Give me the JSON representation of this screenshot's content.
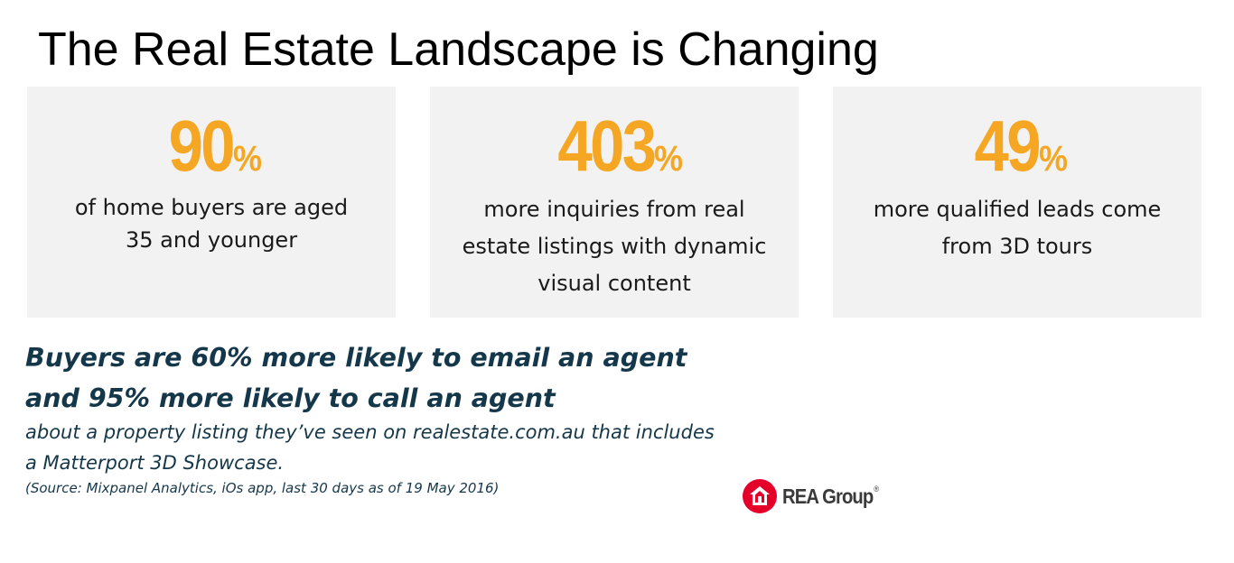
{
  "title": "The Real Estate Landscape is Changing",
  "stats": [
    {
      "value": "90",
      "unit": "%",
      "line1": "of home buyers are aged",
      "line2": "35 and younger",
      "line3": ""
    },
    {
      "value": "403",
      "unit": "%",
      "line1": "more inquiries from real",
      "line2": "estate listings with dynamic",
      "line3": "visual content"
    },
    {
      "value": "49",
      "unit": "%",
      "line1": "more qualified leads come",
      "line2": "from 3D tours",
      "line3": ""
    }
  ],
  "headline": {
    "line1": "Buyers are 60% more likely to email an agent",
    "line2": "and 95% more likely to call an agent"
  },
  "subtext": {
    "line1": "about a property listing they’ve seen on realestate.com.au that includes",
    "line2": "a Matterport 3D Showcase."
  },
  "source": "(Source: Mixpanel Analytics, iOs app, last 30 days as of 19 May 2016)",
  "logo": {
    "text": "REA Group",
    "mark": "®",
    "icon": "rea-house-icon"
  },
  "colors": {
    "stat": "#f5a623",
    "card_bg": "#f2f2f2",
    "headline": "#15374a",
    "logo_red": "#e4002b"
  }
}
